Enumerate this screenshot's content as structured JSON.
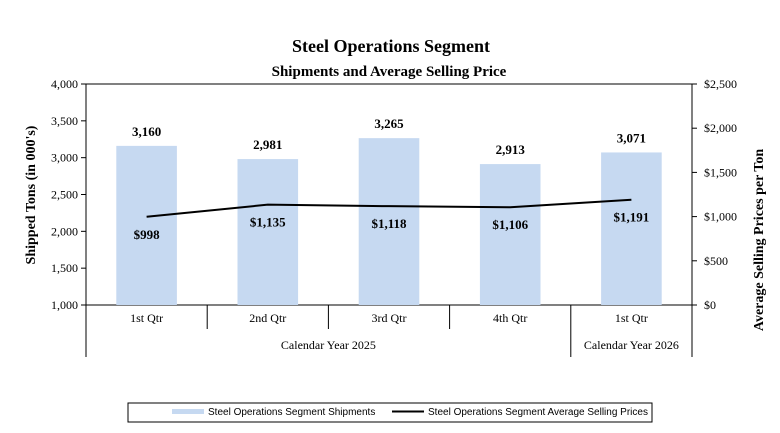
{
  "chart_data": {
    "type": "bar",
    "title": "Steel Operations Segment",
    "subtitle": "Shipments and Average Selling Price",
    "categories": [
      "1st Qtr",
      "2nd Qtr",
      "3rd Qtr",
      "4th Qtr",
      "1st Qtr"
    ],
    "groups": [
      {
        "label": "Calendar Year 2025",
        "span": 4
      },
      {
        "label": "Calendar Year 2026",
        "span": 1
      }
    ],
    "series": [
      {
        "name": "Steel Operations Segment Shipments",
        "type": "bar",
        "axis": "left",
        "color": "#c6d9f1",
        "values": [
          3160,
          2981,
          3265,
          2913,
          3071
        ],
        "labels": [
          "3,160",
          "2,981",
          "3,265",
          "2,913",
          "3,071"
        ]
      },
      {
        "name": "Steel Operations Segment Average Selling Prices",
        "type": "line",
        "axis": "right",
        "color": "#000000",
        "values": [
          998,
          1135,
          1118,
          1106,
          1191
        ],
        "labels": [
          "$998",
          "$1,135",
          "$1,118",
          "$1,106",
          "$1,191"
        ]
      }
    ],
    "ylabel": "Shipped Tons (in 000's)",
    "ylim": [
      1000,
      4000
    ],
    "yticks": [
      "1,000",
      "1,500",
      "2,000",
      "2,500",
      "3,000",
      "3,500",
      "4,000"
    ],
    "y2label": "Average Selling Prices per Ton",
    "y2lim": [
      0,
      2500
    ],
    "y2ticks": [
      "$0",
      "$500",
      "$1,000",
      "$1,500",
      "$2,000",
      "$2,500"
    ],
    "grid": false,
    "legend_position": "bottom"
  }
}
